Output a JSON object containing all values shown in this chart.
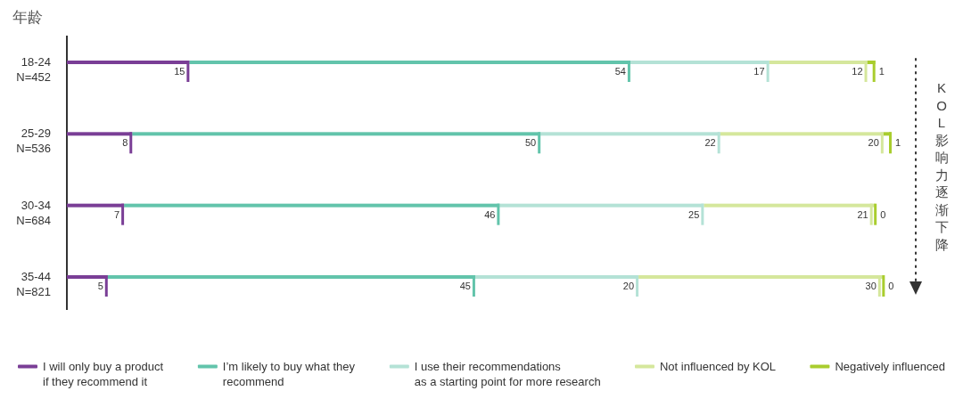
{
  "chart_data": {
    "type": "bar",
    "orientation": "horizontal",
    "stacked": true,
    "ylabel": "年龄",
    "categories": [
      "18-24\nN=452",
      "25-29\nN=536",
      "30-34\nN=684",
      "35-44\nN=821"
    ],
    "series": [
      {
        "name": "I will only buy a product\nif they recommend it",
        "color": "#7a3e96",
        "values": [
          15,
          8,
          7,
          5
        ]
      },
      {
        "name": "I’m likely to buy what they\nrecommend",
        "color": "#62c4ab",
        "values": [
          54,
          50,
          46,
          45
        ]
      },
      {
        "name": "I use their recommendations\nas a starting point for more research",
        "color": "#b4e2d6",
        "values": [
          17,
          22,
          25,
          20
        ]
      },
      {
        "name": "Not influenced by KOL",
        "color": "#d5e79c",
        "values": [
          12,
          20,
          21,
          30
        ]
      },
      {
        "name": "Negatively influenced",
        "color": "#a9cd2e",
        "values": [
          1,
          1,
          0,
          0
        ]
      }
    ],
    "data_labels": true,
    "tick_labels": "y",
    "legend": "bottom",
    "annotations": [
      "KOL影响力逐渐下降"
    ]
  }
}
